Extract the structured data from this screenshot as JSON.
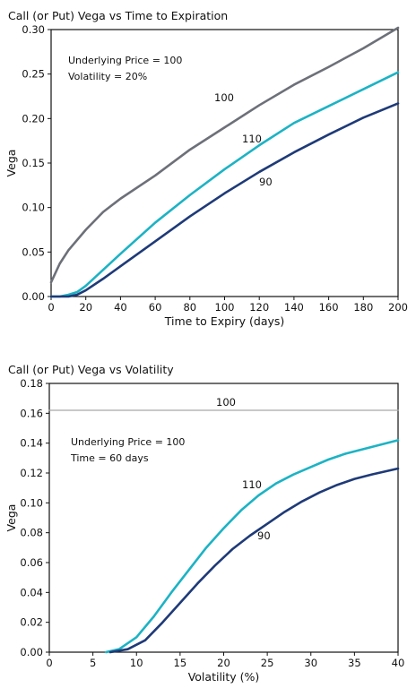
{
  "chart_data": [
    {
      "type": "line",
      "title": "Call (or Put) Vega vs Time to Expiration",
      "xlabel": "Time to Expiry (days)",
      "ylabel": "Vega",
      "xlim": [
        0,
        200
      ],
      "ylim": [
        0,
        0.3
      ],
      "xticks": [
        0,
        20,
        40,
        60,
        80,
        100,
        120,
        140,
        160,
        180,
        200
      ],
      "yticks": [
        0,
        0.05,
        0.1,
        0.15,
        0.2,
        0.25,
        0.3
      ],
      "xtick_labels": [
        "0",
        "20",
        "40",
        "60",
        "80",
        "100",
        "120",
        "140",
        "160",
        "180",
        "200"
      ],
      "ytick_labels": [
        "0.00",
        "0.05",
        "0.10",
        "0.15",
        "0.20",
        "0.25",
        "0.30"
      ],
      "grid": false,
      "annotations": [
        "Underlying Price = 100",
        "Volatility = 20%"
      ],
      "series": [
        {
          "name": "100",
          "color": "#6d7079",
          "x": [
            0,
            5,
            10,
            20,
            30,
            40,
            60,
            80,
            100,
            120,
            140,
            160,
            180,
            200
          ],
          "y": [
            0.016,
            0.037,
            0.052,
            0.075,
            0.095,
            0.11,
            0.136,
            0.165,
            0.19,
            0.215,
            0.238,
            0.258,
            0.279,
            0.302
          ]
        },
        {
          "name": "110",
          "color": "#1cb3c4",
          "x": [
            0,
            5,
            10,
            15,
            20,
            30,
            40,
            60,
            80,
            100,
            120,
            140,
            160,
            180,
            200
          ],
          "y": [
            0,
            0,
            0.002,
            0.005,
            0.012,
            0.03,
            0.048,
            0.083,
            0.114,
            0.143,
            0.17,
            0.195,
            0.214,
            0.233,
            0.252
          ]
        },
        {
          "name": "90",
          "color": "#1e3a78",
          "x": [
            0,
            10,
            15,
            20,
            30,
            40,
            60,
            80,
            100,
            120,
            140,
            160,
            180,
            200
          ],
          "y": [
            0,
            0,
            0.002,
            0.007,
            0.02,
            0.034,
            0.062,
            0.09,
            0.116,
            0.14,
            0.162,
            0.182,
            0.201,
            0.217
          ]
        }
      ]
    },
    {
      "type": "line",
      "title": "Call (or Put) Vega vs Volatility",
      "xlabel": "Volatility (%)",
      "ylabel": "Vega",
      "xlim": [
        0,
        40
      ],
      "ylim": [
        0,
        0.18
      ],
      "xticks": [
        0,
        5,
        10,
        15,
        20,
        25,
        30,
        35,
        40
      ],
      "yticks": [
        0,
        0.02,
        0.04,
        0.06,
        0.08,
        0.1,
        0.12,
        0.14,
        0.16,
        0.18
      ],
      "xtick_labels": [
        "0",
        "5",
        "10",
        "15",
        "20",
        "25",
        "30",
        "35",
        "40"
      ],
      "ytick_labels": [
        "0.00",
        "0.02",
        "0.04",
        "0.06",
        "0.08",
        "0.10",
        "0.12",
        "0.14",
        "0.16",
        "0.18"
      ],
      "grid": false,
      "annotations": [
        "Underlying Price = 100",
        "Time = 60 days"
      ],
      "series": [
        {
          "name": "100",
          "color": "#a6a6a6",
          "x": [
            0,
            40
          ],
          "y": [
            0.162,
            0.162
          ]
        },
        {
          "name": "110",
          "color": "#1cb3c4",
          "x": [
            6.5,
            8,
            10,
            12,
            14,
            16,
            18,
            20,
            22,
            24,
            26,
            28,
            30,
            32,
            34,
            36,
            38,
            40
          ],
          "y": [
            0,
            0.002,
            0.01,
            0.024,
            0.04,
            0.055,
            0.07,
            0.083,
            0.095,
            0.105,
            0.113,
            0.119,
            0.124,
            0.129,
            0.133,
            0.136,
            0.139,
            0.142
          ]
        },
        {
          "name": "90",
          "color": "#1e3a78",
          "x": [
            7,
            9,
            11,
            13,
            15,
            17,
            19,
            21,
            23,
            25,
            27,
            29,
            31,
            33,
            35,
            37,
            40
          ],
          "y": [
            0,
            0.002,
            0.008,
            0.02,
            0.033,
            0.046,
            0.058,
            0.069,
            0.078,
            0.086,
            0.094,
            0.101,
            0.107,
            0.112,
            0.116,
            0.119,
            0.123
          ]
        }
      ]
    }
  ]
}
